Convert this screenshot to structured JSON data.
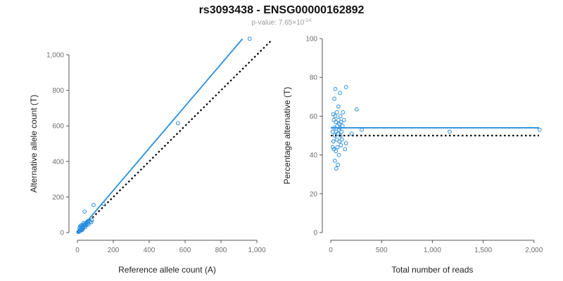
{
  "title": "rs3093438 - ENSG00000162892",
  "subtitle": {
    "prefix": "p-value: 7.65×10",
    "exponent": "-14"
  },
  "colors": {
    "points": "#2b8fde",
    "fit_line": "#2b8fde",
    "reference_line": "#000000",
    "axis": "#555555",
    "tick_text": "#6e6e6e"
  },
  "chart_data": [
    {
      "type": "scatter",
      "xlabel": "Reference allele count (A)",
      "ylabel": "Alternative allele count (T)",
      "xlim": [
        0,
        1000
      ],
      "ylim": [
        0,
        1000
      ],
      "xticks": [
        0,
        200,
        400,
        600,
        800,
        1000
      ],
      "xtick_labels": [
        "0",
        "200",
        "400",
        "600",
        "800",
        "1,000"
      ],
      "yticks": [
        0,
        200,
        400,
        600,
        800,
        1000
      ],
      "ytick_labels": [
        "0",
        "200",
        "400",
        "600",
        "800",
        "1,000"
      ],
      "fit_line": {
        "x": [
          0,
          920
        ],
        "y": [
          0,
          1090
        ]
      },
      "reference_line": {
        "x": [
          0,
          1080
        ],
        "y": [
          0,
          1080
        ]
      },
      "points": [
        {
          "x": 960,
          "y": 1090
        },
        {
          "x": 560,
          "y": 615
        },
        {
          "x": 145,
          "y": 162
        },
        {
          "x": 90,
          "y": 155
        },
        {
          "x": 40,
          "y": 118
        },
        {
          "x": 80,
          "y": 70
        },
        {
          "x": 78,
          "y": 58
        },
        {
          "x": 60,
          "y": 65
        },
        {
          "x": 55,
          "y": 60
        },
        {
          "x": 50,
          "y": 55
        },
        {
          "x": 45,
          "y": 50
        },
        {
          "x": 42,
          "y": 45
        },
        {
          "x": 40,
          "y": 38
        },
        {
          "x": 38,
          "y": 42
        },
        {
          "x": 35,
          "y": 35
        },
        {
          "x": 32,
          "y": 30
        },
        {
          "x": 30,
          "y": 33
        },
        {
          "x": 28,
          "y": 25
        },
        {
          "x": 25,
          "y": 28
        },
        {
          "x": 24,
          "y": 20
        },
        {
          "x": 22,
          "y": 22
        },
        {
          "x": 20,
          "y": 18
        },
        {
          "x": 18,
          "y": 15
        },
        {
          "x": 16,
          "y": 17
        },
        {
          "x": 15,
          "y": 12
        },
        {
          "x": 14,
          "y": 10
        },
        {
          "x": 12,
          "y": 8
        },
        {
          "x": 10,
          "y": 9
        },
        {
          "x": 9,
          "y": 6
        },
        {
          "x": 8,
          "y": 5
        },
        {
          "x": 6,
          "y": 4
        },
        {
          "x": 5,
          "y": 3
        },
        {
          "x": 48,
          "y": 40
        },
        {
          "x": 52,
          "y": 48
        },
        {
          "x": 58,
          "y": 52
        },
        {
          "x": 35,
          "y": 45
        },
        {
          "x": 26,
          "y": 35
        },
        {
          "x": 18,
          "y": 30
        },
        {
          "x": 20,
          "y": 40
        },
        {
          "x": 22,
          "y": 12
        },
        {
          "x": 30,
          "y": 20
        },
        {
          "x": 44,
          "y": 30
        },
        {
          "x": 62,
          "y": 45
        },
        {
          "x": 12,
          "y": 25
        },
        {
          "x": 15,
          "y": 35
        },
        {
          "x": 70,
          "y": 62
        },
        {
          "x": 33,
          "y": 52
        },
        {
          "x": 27,
          "y": 15
        }
      ]
    },
    {
      "type": "scatter",
      "xlabel": "Total number of reads",
      "ylabel": "Percentage alternative (T)",
      "xlim": [
        0,
        2050
      ],
      "ylim": [
        0,
        100
      ],
      "xticks": [
        0,
        500,
        1000,
        1500,
        2000
      ],
      "xtick_labels": [
        "0",
        "500",
        "1,000",
        "1,500",
        "2,000"
      ],
      "yticks": [
        0,
        20,
        40,
        60,
        80,
        100
      ],
      "ytick_labels": [
        "0",
        "20",
        "40",
        "60",
        "80",
        "100"
      ],
      "fit_line": {
        "x": [
          0,
          2050
        ],
        "y": [
          54,
          54
        ]
      },
      "reference_line": {
        "x": [
          0,
          2050
        ],
        "y": [
          50,
          50
        ]
      },
      "points": [
        {
          "x": 2055,
          "y": 53
        },
        {
          "x": 1170,
          "y": 52
        },
        {
          "x": 305,
          "y": 53
        },
        {
          "x": 255,
          "y": 63.5
        },
        {
          "x": 205,
          "y": 51
        },
        {
          "x": 150,
          "y": 75
        },
        {
          "x": 140,
          "y": 43
        },
        {
          "x": 150,
          "y": 46
        },
        {
          "x": 130,
          "y": 58
        },
        {
          "x": 120,
          "y": 62
        },
        {
          "x": 115,
          "y": 55
        },
        {
          "x": 110,
          "y": 48
        },
        {
          "x": 105,
          "y": 52
        },
        {
          "x": 100,
          "y": 57
        },
        {
          "x": 100,
          "y": 45
        },
        {
          "x": 95,
          "y": 60
        },
        {
          "x": 95,
          "y": 50
        },
        {
          "x": 90,
          "y": 54
        },
        {
          "x": 90,
          "y": 72
        },
        {
          "x": 85,
          "y": 47
        },
        {
          "x": 85,
          "y": 56
        },
        {
          "x": 80,
          "y": 53
        },
        {
          "x": 80,
          "y": 40
        },
        {
          "x": 75,
          "y": 65
        },
        {
          "x": 75,
          "y": 58
        },
        {
          "x": 70,
          "y": 51
        },
        {
          "x": 70,
          "y": 35
        },
        {
          "x": 65,
          "y": 44
        },
        {
          "x": 65,
          "y": 55
        },
        {
          "x": 60,
          "y": 62
        },
        {
          "x": 60,
          "y": 48
        },
        {
          "x": 55,
          "y": 33
        },
        {
          "x": 55,
          "y": 52
        },
        {
          "x": 50,
          "y": 57
        },
        {
          "x": 50,
          "y": 42
        },
        {
          "x": 45,
          "y": 60
        },
        {
          "x": 45,
          "y": 74
        },
        {
          "x": 40,
          "y": 37
        },
        {
          "x": 40,
          "y": 50
        },
        {
          "x": 35,
          "y": 69
        },
        {
          "x": 35,
          "y": 54
        },
        {
          "x": 30,
          "y": 43
        },
        {
          "x": 30,
          "y": 58
        },
        {
          "x": 25,
          "y": 47
        },
        {
          "x": 25,
          "y": 61
        },
        {
          "x": 20,
          "y": 52
        },
        {
          "x": 20,
          "y": 44
        }
      ]
    }
  ]
}
